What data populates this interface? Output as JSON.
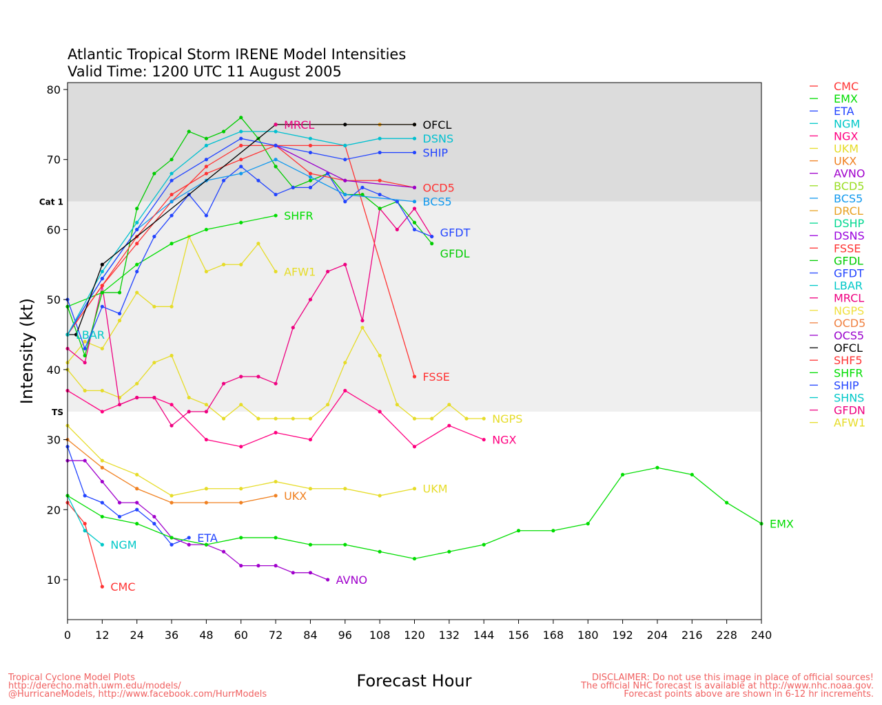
{
  "chart_data": {
    "type": "line",
    "title": "Atlantic Tropical Storm IRENE Model Intensities",
    "subtitle": "Valid Time: 1200 UTC 11 August 2005",
    "xlabel": "Forecast Hour",
    "ylabel": "Intensity (kt)",
    "xlim": [
      0,
      240
    ],
    "ylim": [
      4,
      81
    ],
    "xticks": [
      0,
      12,
      24,
      36,
      48,
      60,
      72,
      84,
      96,
      108,
      120,
      132,
      144,
      156,
      168,
      180,
      192,
      204,
      216,
      228,
      240
    ],
    "yticks": [
      10,
      20,
      30,
      40,
      50,
      60,
      70,
      80
    ],
    "bands": [
      {
        "label": "Cat 1",
        "from": 64,
        "to": 81,
        "color": "#dcdcdc"
      },
      {
        "label": "TS",
        "from": 34,
        "to": 64,
        "color": "#efefef"
      }
    ],
    "series": [
      {
        "name": "CMC",
        "color": "#ff3333",
        "label": true,
        "x": [
          0,
          6,
          12
        ],
        "y": [
          21,
          18,
          9
        ]
      },
      {
        "name": "NGM",
        "color": "#00c8c8",
        "label": true,
        "x": [
          0,
          6,
          12
        ],
        "y": [
          22,
          17,
          15
        ]
      },
      {
        "name": "ETA",
        "color": "#2244ff",
        "label": true,
        "x": [
          0,
          6,
          12,
          18,
          24,
          30,
          36,
          42
        ],
        "y": [
          29,
          22,
          21,
          19,
          20,
          18,
          15,
          16
        ]
      },
      {
        "name": "AVNO",
        "color": "#a000cc",
        "label": true,
        "x": [
          0,
          6,
          12,
          18,
          24,
          30,
          36,
          42,
          48,
          54,
          60,
          66,
          72,
          78,
          84,
          90
        ],
        "y": [
          27,
          27,
          24,
          21,
          21,
          19,
          16,
          15,
          15,
          14,
          12,
          12,
          12,
          11,
          11,
          10
        ]
      },
      {
        "name": "UKX",
        "color": "#f08020",
        "label": true,
        "x": [
          0,
          12,
          24,
          36,
          48,
          60,
          72
        ],
        "y": [
          30,
          26,
          23,
          21,
          21,
          21,
          22
        ]
      },
      {
        "name": "UKM",
        "color": "#e6dc28",
        "label": true,
        "x": [
          0,
          12,
          24,
          36,
          48,
          60,
          72,
          84,
          96,
          108,
          120
        ],
        "y": [
          32,
          27,
          25,
          22,
          23,
          23,
          24,
          23,
          23,
          22,
          23
        ]
      },
      {
        "name": "EMX",
        "color": "#00dd00",
        "label": true,
        "x": [
          0,
          12,
          24,
          36,
          48,
          60,
          72,
          84,
          96,
          108,
          120,
          132,
          144,
          156,
          168,
          180,
          192,
          204,
          216,
          228,
          240
        ],
        "y": [
          22,
          19,
          18,
          16,
          15,
          16,
          16,
          15,
          15,
          14,
          13,
          14,
          15,
          17,
          17,
          18,
          25,
          26,
          25,
          21,
          18
        ]
      },
      {
        "name": "NGX",
        "color": "#ff0080",
        "label": true,
        "x": [
          0,
          12,
          24,
          30,
          36,
          48,
          60,
          72,
          84,
          96,
          108,
          120,
          132,
          144
        ],
        "y": [
          37,
          34,
          36,
          36,
          35,
          30,
          29,
          31,
          30,
          37,
          34,
          29,
          32,
          30
        ]
      },
      {
        "name": "NGPS",
        "color": "#e6dc28",
        "label": true,
        "x": [
          0,
          6,
          12,
          18,
          24,
          30,
          36,
          42,
          48,
          54,
          60,
          66,
          72,
          78,
          84,
          90,
          96,
          102,
          108,
          114,
          120,
          126,
          132,
          138,
          144
        ],
        "y": [
          40,
          37,
          37,
          36,
          38,
          41,
          42,
          36,
          35,
          33,
          35,
          33,
          33,
          33,
          33,
          35,
          41,
          46,
          42,
          35,
          33,
          33,
          35,
          33,
          33
        ]
      },
      {
        "name": "AFW1",
        "color": "#e6dc28",
        "label": true,
        "x": [
          0,
          6,
          12,
          18,
          24,
          30,
          36,
          42,
          48,
          54,
          60,
          66,
          72
        ],
        "y": [
          41,
          44,
          43,
          47,
          51,
          49,
          49,
          59,
          54,
          55,
          55,
          58,
          54
        ]
      },
      {
        "name": "GFDN",
        "color": "#ee0080",
        "label": false,
        "x": [
          0,
          6,
          12,
          18,
          24,
          30,
          36,
          42,
          48,
          54,
          60,
          66,
          72,
          78,
          84,
          90,
          96,
          102,
          108,
          114,
          120,
          126
        ],
        "y": [
          43,
          41,
          52,
          35,
          36,
          36,
          32,
          34,
          34,
          38,
          39,
          39,
          38,
          46,
          50,
          54,
          55,
          47,
          63,
          60,
          63,
          59
        ]
      },
      {
        "name": "FSSE",
        "color": "#ff3333",
        "label": true,
        "x": [
          0,
          12,
          24,
          36,
          48,
          60,
          72,
          84,
          96,
          120
        ],
        "y": [
          45,
          52,
          58,
          64,
          69,
          72,
          72,
          72,
          72,
          39
        ]
      },
      {
        "name": "SHFR",
        "color": "#00dd00",
        "label": true,
        "x": [
          0,
          12,
          24,
          36,
          48,
          60,
          72
        ],
        "y": [
          49,
          51,
          55,
          58,
          60,
          61,
          62
        ]
      },
      {
        "name": "GFDL",
        "color": "#00cc00",
        "label": true,
        "x": [
          0,
          6,
          12,
          18,
          24,
          30,
          36,
          42,
          48,
          54,
          60,
          66,
          72,
          78,
          84,
          90,
          96,
          102,
          108,
          114,
          120,
          126
        ],
        "y": [
          49,
          42,
          51,
          51,
          63,
          68,
          70,
          74,
          73,
          74,
          76,
          73,
          69,
          66,
          67,
          68,
          65,
          65,
          63,
          64,
          61,
          58
        ]
      },
      {
        "name": "GFDT",
        "color": "#2244ff",
        "label": true,
        "x": [
          0,
          6,
          12,
          18,
          24,
          30,
          36,
          42,
          48,
          54,
          60,
          66,
          72,
          78,
          84,
          90,
          96,
          102,
          108,
          114,
          120,
          126
        ],
        "y": [
          50,
          43,
          49,
          48,
          54,
          59,
          62,
          65,
          62,
          67,
          69,
          67,
          65,
          66,
          66,
          68,
          64,
          66,
          65,
          64,
          60,
          59
        ]
      },
      {
        "name": "BCS5",
        "color": "#1199ee",
        "label": true,
        "x": [
          0,
          12,
          24,
          36,
          48,
          60,
          72,
          84,
          96,
          120
        ],
        "y": [
          45,
          53,
          60,
          64,
          67,
          68,
          70,
          67.5,
          65,
          64
        ]
      },
      {
        "name": "OCD5",
        "color": "#ff3333",
        "label": true,
        "x": [
          0,
          12,
          24,
          36,
          48,
          60,
          72,
          84,
          96,
          108,
          120
        ],
        "y": [
          45,
          52,
          59,
          65,
          68,
          70,
          72,
          68,
          67,
          67,
          66
        ]
      },
      {
        "name": "OCS5",
        "color": "#9900cc",
        "label": false,
        "x": [
          72,
          96,
          120
        ],
        "y": [
          72,
          67,
          66
        ]
      },
      {
        "name": "SHIP",
        "color": "#2244ff",
        "label": true,
        "x": [
          0,
          12,
          24,
          36,
          48,
          60,
          72,
          84,
          96,
          108,
          120
        ],
        "y": [
          45,
          53,
          60,
          67,
          70,
          73,
          72,
          71,
          70,
          71,
          71
        ]
      },
      {
        "name": "DSNS",
        "color": "#00c0d0",
        "label": true,
        "x": [
          0,
          12,
          24,
          36,
          48,
          60,
          72,
          84,
          96,
          108,
          120
        ],
        "y": [
          45,
          54,
          61,
          68,
          72,
          74,
          74,
          73,
          72,
          73,
          73
        ]
      },
      {
        "name": "DRCL",
        "color": "#e8a020",
        "label": false,
        "x": [
          72,
          108,
          120
        ],
        "y": [
          75,
          75,
          75
        ]
      },
      {
        "name": "OFCL",
        "color": "#000000",
        "label": true,
        "x": [
          0,
          3,
          12,
          72,
          96,
          120
        ],
        "y": [
          45,
          45,
          55,
          75,
          75,
          75
        ]
      },
      {
        "name": "MRCL",
        "color": "#ee0080",
        "label": true,
        "x": [
          72
        ],
        "y": [
          75
        ]
      },
      {
        "name": "LBAR",
        "color": "#00c8c8",
        "label": true,
        "x": [
          0
        ],
        "y": [
          45
        ]
      }
    ],
    "legend": [
      {
        "name": "CMC",
        "color": "#ff3333"
      },
      {
        "name": "EMX",
        "color": "#00dd00"
      },
      {
        "name": "ETA",
        "color": "#2244ff"
      },
      {
        "name": "NGM",
        "color": "#00c8c8"
      },
      {
        "name": "NGX",
        "color": "#ff0080"
      },
      {
        "name": "UKM",
        "color": "#e6dc28"
      },
      {
        "name": "UKX",
        "color": "#f08020"
      },
      {
        "name": "AVNO",
        "color": "#a000cc"
      },
      {
        "name": "BCD5",
        "color": "#99dd22"
      },
      {
        "name": "BCS5",
        "color": "#1199ee"
      },
      {
        "name": "DRCL",
        "color": "#e8a020"
      },
      {
        "name": "DSHP",
        "color": "#00d890"
      },
      {
        "name": "DSNS",
        "color": "#9900dd"
      },
      {
        "name": "FSSE",
        "color": "#ff3333"
      },
      {
        "name": "GFDL",
        "color": "#00cc00"
      },
      {
        "name": "GFDT",
        "color": "#2244ff"
      },
      {
        "name": "LBAR",
        "color": "#00c8c8"
      },
      {
        "name": "MRCL",
        "color": "#ee0080"
      },
      {
        "name": "NGPS",
        "color": "#f0e040"
      },
      {
        "name": "OCD5",
        "color": "#f08040"
      },
      {
        "name": "OCS5",
        "color": "#9900cc"
      },
      {
        "name": "OFCL",
        "color": "#000000"
      },
      {
        "name": "SHF5",
        "color": "#ff3333"
      },
      {
        "name": "SHFR",
        "color": "#00dd00"
      },
      {
        "name": "SHIP",
        "color": "#2244ff"
      },
      {
        "name": "SHNS",
        "color": "#00c8c8"
      },
      {
        "name": "GFDN",
        "color": "#ee0080"
      },
      {
        "name": "AFW1",
        "color": "#e6dc28"
      }
    ]
  },
  "footer": {
    "left": [
      "Tropical Cyclone Model Plots",
      "http://derecho.math.uwm.edu/models/",
      "@HurricaneModels, http://www.facebook.com/HurrModels"
    ],
    "right": [
      "DISCLAIMER: Do not use this image in place of official sources!",
      "The official NHC forecast is available at http://www.nhc.noaa.gov.",
      "Forecast points above are shown in 6-12 hr increments."
    ]
  }
}
